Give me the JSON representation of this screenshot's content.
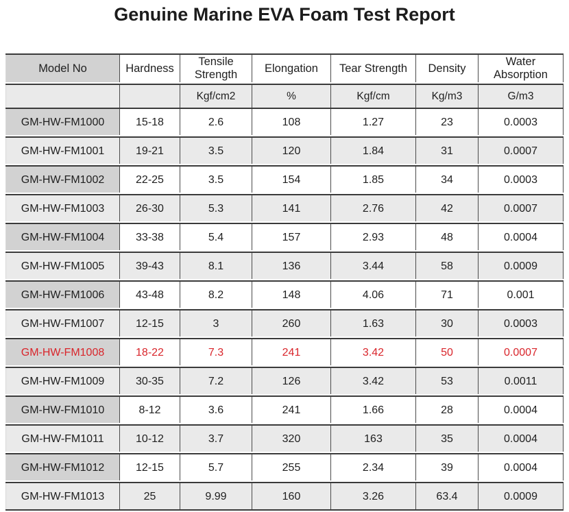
{
  "title": "Genuine Marine EVA Foam Test Report",
  "table": {
    "columns": [
      "Model No",
      "Hardness",
      "Tensile Strength",
      "Elongation",
      "Tear Strength",
      "Density",
      "Water Absorption"
    ],
    "units": [
      "",
      "",
      "Kgf/cm2",
      "%",
      "Kgf/cm",
      "Kg/m3",
      "G/m3"
    ],
    "rows": [
      {
        "cells": [
          "GM-HW-FM1000",
          "15-18",
          "2.6",
          "108",
          "1.27",
          "23",
          "0.0003"
        ],
        "highlight": false
      },
      {
        "cells": [
          "GM-HW-FM1001",
          "19-21",
          "3.5",
          "120",
          "1.84",
          "31",
          "0.0007"
        ],
        "highlight": false
      },
      {
        "cells": [
          "GM-HW-FM1002",
          "22-25",
          "3.5",
          "154",
          "1.85",
          "34",
          "0.0003"
        ],
        "highlight": false
      },
      {
        "cells": [
          "GM-HW-FM1003",
          "26-30",
          "5.3",
          "141",
          "2.76",
          "42",
          "0.0007"
        ],
        "highlight": false
      },
      {
        "cells": [
          "GM-HW-FM1004",
          "33-38",
          "5.4",
          "157",
          "2.93",
          "48",
          "0.0004"
        ],
        "highlight": false
      },
      {
        "cells": [
          "GM-HW-FM1005",
          "39-43",
          "8.1",
          "136",
          "3.44",
          "58",
          "0.0009"
        ],
        "highlight": false
      },
      {
        "cells": [
          "GM-HW-FM1006",
          "43-48",
          "8.2",
          "148",
          "4.06",
          "71",
          "0.001"
        ],
        "highlight": false
      },
      {
        "cells": [
          "GM-HW-FM1007",
          "12-15",
          "3",
          "260",
          "1.63",
          "30",
          "0.0003"
        ],
        "highlight": false
      },
      {
        "cells": [
          "GM-HW-FM1008",
          "18-22",
          "7.3",
          "241",
          "3.42",
          "50",
          "0.0007"
        ],
        "highlight": true
      },
      {
        "cells": [
          "GM-HW-FM1009",
          "30-35",
          "7.2",
          "126",
          "3.42",
          "53",
          "0.0011"
        ],
        "highlight": false
      },
      {
        "cells": [
          "GM-HW-FM1010",
          "8-12",
          "3.6",
          "241",
          "1.66",
          "28",
          "0.0004"
        ],
        "highlight": false
      },
      {
        "cells": [
          "GM-HW-FM1011",
          "10-12",
          "3.7",
          "320",
          "163",
          "35",
          "0.0004"
        ],
        "highlight": false
      },
      {
        "cells": [
          "GM-HW-FM1012",
          "12-15",
          "5.7",
          "255",
          "2.34",
          "39",
          "0.0004"
        ],
        "highlight": false
      },
      {
        "cells": [
          "GM-HW-FM1013",
          "25",
          "9.99",
          "160",
          "3.26",
          "63.4",
          "0.0009"
        ],
        "highlight": false
      }
    ],
    "highlight_color": "#d9252b",
    "colors": {
      "model_cell_gray": "#d2d2d2",
      "alt_row_gray": "#eaeaea",
      "border_dark": "#3a3a3a"
    }
  }
}
